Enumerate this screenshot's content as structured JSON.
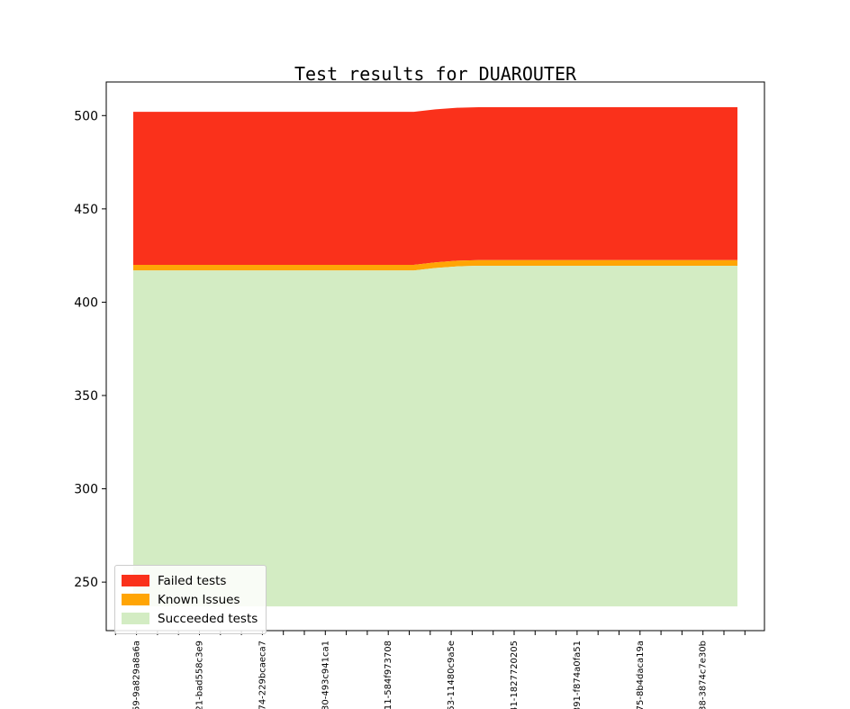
{
  "chart_data": {
    "type": "area",
    "stacked": true,
    "title": "Test results for DUAROUTER",
    "legend_position": "lower left",
    "grid": false,
    "ylim": [
      224,
      518
    ],
    "yticks": [
      250,
      300,
      350,
      400,
      450,
      500
    ],
    "n_points": 29,
    "x_tick_count": 31,
    "x_first_labeled_tick": 1,
    "x_labeled_tick_step": 3,
    "x_labels": [
      "59-9a829a8a6a",
      "21-bad558c3e9",
      "74-229bcaeca7",
      "30-493c941ca1",
      "11-584f973708",
      "53-11480c9a5e",
      "41-1827720205",
      "391-f874a0fa51",
      "75-8b4daca19a",
      "38-3874c7e30b"
    ],
    "series": [
      {
        "name": "Failed tests",
        "color": "#fa311b",
        "approx_count": 82,
        "top_boundary": [
          502,
          502,
          502,
          502,
          502,
          502,
          502,
          502,
          502,
          502,
          502,
          502,
          502,
          502,
          503.3,
          504.2,
          504.5,
          504.5,
          504.5,
          504.5,
          504.5,
          504.5,
          504.5,
          504.5,
          504.5,
          504.5,
          504.5,
          504.5,
          504.5
        ]
      },
      {
        "name": "Known Issues",
        "color": "#ffa505",
        "approx_count": 3,
        "top_boundary": [
          420,
          420,
          420,
          420,
          420,
          420,
          420,
          420,
          420,
          420,
          420,
          420,
          420,
          420,
          421.3,
          422.2,
          422.5,
          422.5,
          422.5,
          422.5,
          422.5,
          422.5,
          422.5,
          422.5,
          422.5,
          422.5,
          422.5,
          422.5,
          422.5
        ]
      },
      {
        "name": "Succeeded tests",
        "color": "#d3ecc3",
        "top_boundary": [
          417,
          417,
          417,
          417,
          417,
          417,
          417,
          417,
          417,
          417,
          417,
          417,
          417,
          417,
          418.3,
          419.2,
          419.5,
          419.5,
          419.5,
          419.5,
          419.5,
          419.5,
          419.5,
          419.5,
          419.5,
          419.5,
          419.5,
          419.5,
          419.5
        ]
      }
    ],
    "stack_bottom_boundary": 237
  }
}
